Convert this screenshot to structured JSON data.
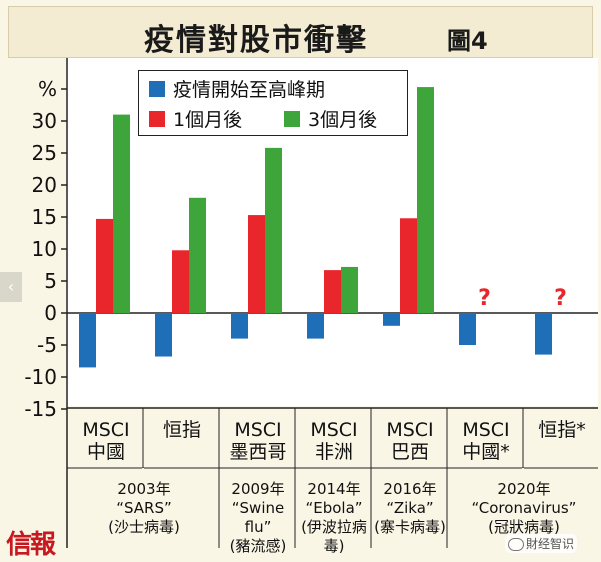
{
  "title": "疫情對股市衝擊",
  "figure_label": "圖4",
  "brand": "信報",
  "watermark": "財经智识",
  "legend": [
    {
      "label": "疫情開始至高峰期",
      "color": "#1f6fb8"
    },
    {
      "label": "1個月後",
      "color": "#e8262b"
    },
    {
      "label": "3個月後",
      "color": "#3da53a"
    }
  ],
  "colors": {
    "blue": "#1f6fb8",
    "red": "#e8262b",
    "green": "#3da53a",
    "question": "#e8262b"
  },
  "chart_data": {
    "type": "bar",
    "title": "疫情對股市衝擊",
    "ylabel": "%",
    "ylim": [
      -15,
      35
    ],
    "yticks": [
      "%",
      "30",
      "25",
      "20",
      "15",
      "10",
      "5",
      "0",
      "-5",
      "-10",
      "-15"
    ],
    "categories": [
      {
        "line1": "MSCI",
        "line2": "中國"
      },
      {
        "line1": "恒指",
        "line2": ""
      },
      {
        "line1": "MSCI",
        "line2": "墨西哥"
      },
      {
        "line1": "MSCI",
        "line2": "非洲"
      },
      {
        "line1": "MSCI",
        "line2": "巴西"
      },
      {
        "line1": "MSCI",
        "line2": "中國*"
      },
      {
        "line1": "恒指*",
        "line2": ""
      }
    ],
    "series": [
      {
        "name": "疫情開始至高峰期",
        "values": [
          -8.5,
          -6.8,
          -4,
          -4,
          -2,
          -5,
          -6.5
        ]
      },
      {
        "name": "1個月後",
        "values": [
          14.7,
          9.8,
          15.3,
          6.7,
          14.8,
          null,
          null
        ]
      },
      {
        "name": "3個月後",
        "values": [
          31,
          18,
          25.8,
          7.2,
          35.3,
          null,
          null
        ]
      }
    ],
    "unknown_marker": "?",
    "groups": [
      {
        "year": "2003年",
        "name": "“SARS”",
        "note": "(沙士病毒)"
      },
      {
        "year": "2009年",
        "name": "“Swine flu”",
        "note": "(豬流感)"
      },
      {
        "year": "2014年",
        "name": "“Ebola”",
        "note": "(伊波拉病毒)"
      },
      {
        "year": "2016年",
        "name": "“Zika”",
        "note": "(寨卡病毒)"
      },
      {
        "year": "2020年",
        "name": "“Coronavirus”",
        "note": "(冠狀病毒)"
      }
    ]
  }
}
